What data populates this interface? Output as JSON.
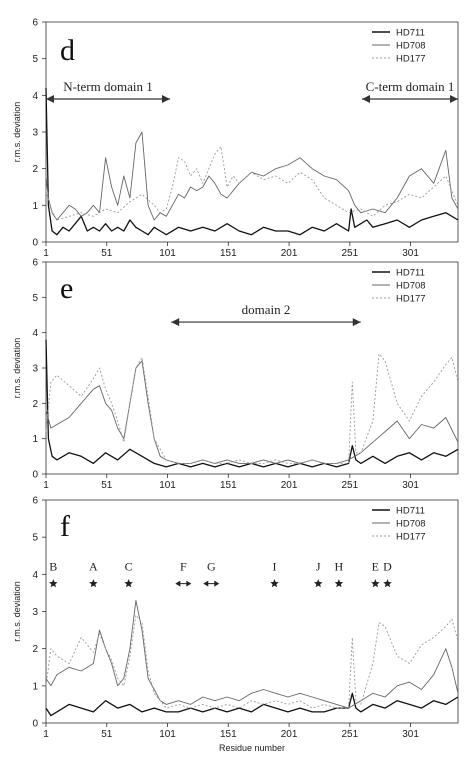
{
  "chart_data": [
    {
      "type": "line",
      "panel_label": "d",
      "ylabel": "r.m.s. deviation",
      "xlabel": "",
      "ylim": [
        0,
        6
      ],
      "xlim": [
        1,
        340
      ],
      "yticks": [
        0,
        1,
        2,
        3,
        4,
        5,
        6
      ],
      "xticks": [
        1,
        51,
        101,
        151,
        201,
        251,
        301
      ],
      "grid": false,
      "legend_position": "top-right",
      "series": [
        {
          "name": "HD711",
          "color": "#111111",
          "x": [
            1,
            3,
            6,
            10,
            15,
            20,
            25,
            30,
            35,
            40,
            45,
            50,
            55,
            60,
            65,
            70,
            75,
            80,
            85,
            90,
            95,
            100,
            110,
            120,
            130,
            140,
            150,
            160,
            170,
            180,
            190,
            200,
            210,
            220,
            230,
            240,
            250,
            252,
            255,
            260,
            265,
            270,
            280,
            290,
            300,
            310,
            320,
            330,
            340
          ],
          "values": [
            4.2,
            1.0,
            0.3,
            0.2,
            0.4,
            0.3,
            0.5,
            0.7,
            0.3,
            0.4,
            0.3,
            0.5,
            0.3,
            0.4,
            0.3,
            0.6,
            0.4,
            0.3,
            0.2,
            0.4,
            0.3,
            0.2,
            0.4,
            0.3,
            0.4,
            0.3,
            0.5,
            0.3,
            0.2,
            0.4,
            0.3,
            0.3,
            0.2,
            0.4,
            0.3,
            0.5,
            0.3,
            0.9,
            0.4,
            0.5,
            0.6,
            0.4,
            0.5,
            0.6,
            0.4,
            0.6,
            0.7,
            0.8,
            0.6
          ]
        },
        {
          "name": "HD708",
          "color": "#666666",
          "x": [
            1,
            3,
            6,
            10,
            15,
            20,
            25,
            30,
            35,
            40,
            45,
            50,
            55,
            60,
            65,
            70,
            75,
            80,
            85,
            90,
            95,
            100,
            105,
            110,
            115,
            120,
            125,
            130,
            135,
            140,
            145,
            150,
            160,
            170,
            180,
            190,
            200,
            210,
            220,
            230,
            240,
            250,
            255,
            260,
            270,
            280,
            290,
            300,
            310,
            320,
            330,
            335,
            340
          ],
          "values": [
            1.8,
            1.2,
            0.8,
            0.6,
            0.8,
            1.0,
            0.9,
            0.7,
            0.8,
            1.0,
            0.8,
            2.3,
            1.5,
            1.0,
            1.8,
            1.2,
            2.7,
            3.0,
            1.0,
            0.6,
            0.8,
            0.7,
            1.0,
            1.3,
            1.2,
            1.5,
            1.4,
            1.5,
            1.8,
            1.6,
            1.3,
            1.2,
            1.6,
            1.9,
            1.8,
            2.0,
            2.1,
            2.3,
            2.0,
            1.8,
            1.7,
            1.4,
            1.0,
            0.8,
            0.9,
            0.8,
            1.2,
            1.8,
            2.0,
            1.6,
            2.5,
            1.2,
            0.9
          ]
        },
        {
          "name": "HD177",
          "color": "#999999",
          "dash": "2,2",
          "x": [
            1,
            5,
            10,
            20,
            30,
            40,
            50,
            60,
            70,
            80,
            90,
            95,
            100,
            105,
            110,
            115,
            120,
            125,
            130,
            140,
            145,
            150,
            155,
            160,
            170,
            180,
            190,
            200,
            210,
            220,
            230,
            240,
            250,
            260,
            270,
            280,
            290,
            300,
            310,
            320,
            330,
            340
          ],
          "values": [
            1.4,
            0.9,
            0.6,
            0.7,
            0.8,
            0.7,
            0.9,
            0.8,
            1.1,
            1.3,
            1.0,
            0.8,
            0.9,
            1.5,
            2.3,
            2.2,
            1.8,
            2.0,
            1.6,
            2.4,
            2.6,
            1.5,
            1.8,
            1.6,
            1.9,
            1.7,
            1.8,
            1.6,
            1.9,
            1.7,
            1.2,
            1.0,
            0.8,
            0.9,
            0.7,
            1.0,
            1.1,
            1.3,
            1.2,
            1.5,
            1.8,
            1.0
          ]
        }
      ],
      "annotations": [
        {
          "text": "N-term domain 1",
          "x_from": 1,
          "x_to": 103,
          "y": 3.9
        },
        {
          "text": "C-term domain 1",
          "x_from": 261,
          "x_to": 340,
          "y": 3.9
        }
      ]
    },
    {
      "type": "line",
      "panel_label": "e",
      "ylabel": "r.m.s. deviation",
      "xlabel": "",
      "ylim": [
        0,
        6
      ],
      "xlim": [
        1,
        340
      ],
      "yticks": [
        0,
        1,
        2,
        3,
        4,
        5,
        6
      ],
      "xticks": [
        1,
        51,
        101,
        151,
        201,
        251,
        301
      ],
      "grid": false,
      "legend_position": "top-right",
      "series": [
        {
          "name": "HD711",
          "color": "#111111",
          "x": [
            1,
            3,
            6,
            10,
            20,
            30,
            40,
            50,
            60,
            70,
            80,
            90,
            100,
            110,
            120,
            130,
            140,
            150,
            160,
            170,
            180,
            190,
            200,
            210,
            220,
            230,
            240,
            250,
            253,
            256,
            260,
            270,
            280,
            290,
            300,
            310,
            320,
            330,
            340
          ],
          "values": [
            3.8,
            1.0,
            0.5,
            0.4,
            0.6,
            0.5,
            0.3,
            0.6,
            0.4,
            0.7,
            0.5,
            0.3,
            0.2,
            0.3,
            0.2,
            0.3,
            0.2,
            0.3,
            0.2,
            0.3,
            0.2,
            0.3,
            0.2,
            0.3,
            0.2,
            0.3,
            0.2,
            0.3,
            0.8,
            0.4,
            0.3,
            0.5,
            0.3,
            0.5,
            0.6,
            0.4,
            0.6,
            0.5,
            0.7
          ]
        },
        {
          "name": "HD708",
          "color": "#666666",
          "x": [
            1,
            5,
            10,
            20,
            30,
            40,
            45,
            50,
            55,
            60,
            65,
            70,
            75,
            80,
            85,
            90,
            95,
            100,
            110,
            120,
            130,
            140,
            150,
            160,
            170,
            180,
            190,
            200,
            210,
            220,
            230,
            240,
            250,
            255,
            260,
            270,
            280,
            290,
            300,
            310,
            320,
            330,
            340
          ],
          "values": [
            1.8,
            1.3,
            1.4,
            1.6,
            2.0,
            2.4,
            2.5,
            2.0,
            1.8,
            1.3,
            1.0,
            2.0,
            3.0,
            3.2,
            2.0,
            1.0,
            0.5,
            0.4,
            0.3,
            0.3,
            0.4,
            0.3,
            0.4,
            0.3,
            0.3,
            0.4,
            0.3,
            0.4,
            0.3,
            0.4,
            0.3,
            0.3,
            0.4,
            0.5,
            0.6,
            0.9,
            1.2,
            1.5,
            1.0,
            1.4,
            1.3,
            1.6,
            0.9
          ]
        },
        {
          "name": "HD177",
          "color": "#999999",
          "dash": "2,2",
          "x": [
            1,
            5,
            10,
            20,
            30,
            40,
            45,
            50,
            55,
            60,
            65,
            70,
            75,
            80,
            85,
            90,
            95,
            100,
            110,
            120,
            130,
            140,
            150,
            160,
            170,
            180,
            190,
            200,
            210,
            220,
            230,
            240,
            250,
            253,
            256,
            260,
            270,
            275,
            280,
            290,
            300,
            310,
            320,
            330,
            335,
            340
          ],
          "values": [
            1.2,
            2.6,
            2.8,
            2.5,
            2.2,
            2.7,
            3.0,
            2.4,
            2.0,
            1.5,
            0.9,
            2.0,
            3.0,
            3.3,
            2.2,
            1.0,
            0.7,
            0.4,
            0.3,
            0.3,
            0.4,
            0.3,
            0.3,
            0.4,
            0.3,
            0.3,
            0.4,
            0.3,
            0.3,
            0.4,
            0.3,
            0.3,
            0.3,
            2.6,
            0.6,
            0.6,
            1.5,
            3.4,
            3.2,
            2.0,
            1.5,
            2.2,
            2.6,
            3.1,
            3.3,
            2.6
          ]
        }
      ],
      "annotations": [
        {
          "text": "domain 2",
          "x_from": 104,
          "x_to": 260,
          "y": 4.3
        }
      ]
    },
    {
      "type": "line",
      "panel_label": "f",
      "ylabel": "r.m.s. deviation",
      "xlabel": "Residue number",
      "ylim": [
        0,
        6
      ],
      "xlim": [
        1,
        340
      ],
      "yticks": [
        0,
        1,
        2,
        3,
        4,
        5,
        6
      ],
      "xticks": [
        1,
        51,
        101,
        151,
        201,
        251,
        301
      ],
      "grid": false,
      "legend_position": "top-right",
      "series": [
        {
          "name": "HD711",
          "color": "#111111",
          "x": [
            1,
            5,
            10,
            20,
            30,
            40,
            50,
            60,
            70,
            80,
            90,
            100,
            110,
            120,
            130,
            140,
            150,
            160,
            170,
            180,
            190,
            200,
            210,
            220,
            230,
            240,
            250,
            253,
            256,
            260,
            270,
            280,
            290,
            300,
            310,
            320,
            330,
            340
          ],
          "values": [
            0.4,
            0.2,
            0.3,
            0.5,
            0.4,
            0.3,
            0.6,
            0.4,
            0.5,
            0.3,
            0.4,
            0.3,
            0.3,
            0.4,
            0.3,
            0.4,
            0.3,
            0.4,
            0.3,
            0.5,
            0.4,
            0.3,
            0.4,
            0.3,
            0.3,
            0.4,
            0.4,
            0.8,
            0.4,
            0.3,
            0.5,
            0.4,
            0.6,
            0.5,
            0.4,
            0.6,
            0.5,
            0.7
          ]
        },
        {
          "name": "HD708",
          "color": "#666666",
          "x": [
            1,
            5,
            10,
            20,
            30,
            40,
            45,
            50,
            55,
            60,
            65,
            70,
            75,
            80,
            85,
            90,
            95,
            100,
            110,
            120,
            130,
            140,
            150,
            160,
            170,
            180,
            190,
            200,
            210,
            220,
            230,
            240,
            250,
            255,
            260,
            270,
            280,
            290,
            300,
            310,
            320,
            330,
            335,
            340
          ],
          "values": [
            1.2,
            1.0,
            1.3,
            1.5,
            1.4,
            1.6,
            2.5,
            2.0,
            1.6,
            1.0,
            1.2,
            2.0,
            3.3,
            2.5,
            1.2,
            0.9,
            0.6,
            0.5,
            0.6,
            0.5,
            0.7,
            0.6,
            0.7,
            0.6,
            0.8,
            0.9,
            0.8,
            0.7,
            0.8,
            0.7,
            0.6,
            0.5,
            0.4,
            0.5,
            0.6,
            0.8,
            0.7,
            1.0,
            1.1,
            0.9,
            1.3,
            2.0,
            1.5,
            0.8
          ]
        },
        {
          "name": "HD177",
          "color": "#999999",
          "dash": "2,2",
          "x": [
            1,
            5,
            10,
            20,
            30,
            40,
            45,
            50,
            55,
            60,
            65,
            70,
            75,
            80,
            85,
            90,
            95,
            100,
            110,
            120,
            130,
            140,
            150,
            160,
            170,
            180,
            190,
            200,
            210,
            220,
            230,
            240,
            250,
            253,
            256,
            260,
            270,
            275,
            280,
            290,
            300,
            310,
            320,
            330,
            335,
            340
          ],
          "values": [
            1.0,
            2.0,
            1.8,
            1.6,
            2.3,
            1.9,
            2.4,
            2.0,
            1.7,
            1.2,
            1.0,
            1.8,
            2.9,
            2.7,
            1.4,
            0.8,
            0.6,
            0.4,
            0.5,
            0.4,
            0.5,
            0.4,
            0.5,
            0.4,
            0.6,
            0.5,
            0.6,
            0.5,
            0.6,
            0.4,
            0.5,
            0.4,
            0.4,
            2.3,
            0.6,
            0.5,
            1.6,
            2.7,
            2.6,
            1.8,
            1.6,
            2.1,
            2.3,
            2.6,
            2.8,
            2.2
          ]
        }
      ],
      "markers": [
        {
          "text": "B",
          "x": 7,
          "kind": "star"
        },
        {
          "text": "A",
          "x": 40,
          "kind": "star"
        },
        {
          "text": "C",
          "x": 69,
          "kind": "star"
        },
        {
          "text": "F",
          "x": 114,
          "kind": "double-arrow"
        },
        {
          "text": "G",
          "x": 137,
          "kind": "double-arrow"
        },
        {
          "text": "I",
          "x": 189,
          "kind": "star"
        },
        {
          "text": "J",
          "x": 225,
          "kind": "star"
        },
        {
          "text": "H",
          "x": 242,
          "kind": "star"
        },
        {
          "text": "E",
          "x": 272,
          "kind": "star"
        },
        {
          "text": "D",
          "x": 282,
          "kind": "star"
        }
      ]
    }
  ]
}
